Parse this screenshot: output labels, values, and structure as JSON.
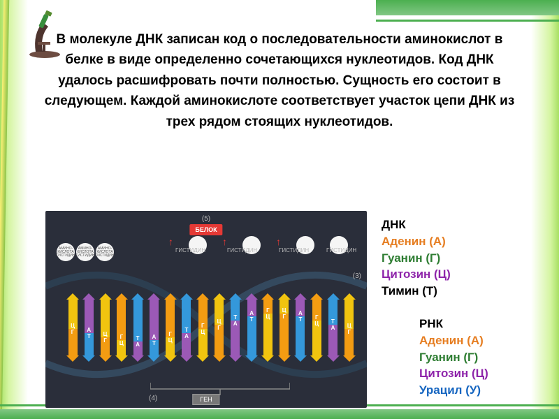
{
  "main_text": "В молекуле ДНК записан код о последовательности аминокислот в белке в виде определенно сочетающихся нуклеотидов. Код ДНК удалось расшифровать почти полностью. Сущность его состоит в следующем. Каждой аминокислоте соответствует участок цепи ДНК из трех рядом стоящих нуклеотидов.",
  "dna_legend": {
    "title": "ДНК",
    "adenine": "Аденин (А)",
    "guanine": "Гуанин (Г)",
    "cytosine": "Цитозин (Ц)",
    "thymine": "Тимин (Т)"
  },
  "rna_legend": {
    "title": "РНК",
    "adenine": "Аденин (А)",
    "guanine": "Гуанин (Г)",
    "cytosine": "Цитозин (Ц)",
    "uracil": "Урацил (У)"
  },
  "colors": {
    "adenine": "#e67e22",
    "guanine": "#2e7d32",
    "cytosine": "#8e24aa",
    "thymine": "#000000",
    "uracil": "#1565c0",
    "dna_title": "#000000",
    "rna_title": "#000000",
    "bar_orange": "#f39c12",
    "bar_green": "#27ae60",
    "bar_yellow": "#f1c40f",
    "bar_purple": "#9b59b6",
    "bar_red": "#e74c3c",
    "bar_blue": "#3498db",
    "strand": "#34495e"
  },
  "diagram": {
    "protein_label": "БЕЛОК",
    "gene_label": "ГЕН",
    "amino_label": "АМИНО-\nКИСЛОТА\nГИСТИДИН",
    "histidine": "ГИСТИДИН",
    "num5": "(5)",
    "num4": "(4)",
    "num3": "(3)",
    "pairs": [
      {
        "top": "#f1c40f",
        "topH": 42,
        "bot": "#f39c12",
        "botH": 38,
        "topL": "Ц",
        "botL": "Г"
      },
      {
        "top": "#9b59b6",
        "topH": 48,
        "bot": "#3498db",
        "botH": 32,
        "topL": "А",
        "botL": "Т"
      },
      {
        "top": "#f1c40f",
        "topH": 54,
        "bot": "#f39c12",
        "botH": 26,
        "topL": "Ц",
        "botL": "Г"
      },
      {
        "top": "#f39c12",
        "topH": 58,
        "bot": "#f1c40f",
        "botH": 22,
        "topL": "Г",
        "botL": "Ц"
      },
      {
        "top": "#3498db",
        "topH": 60,
        "bot": "#9b59b6",
        "botH": 20,
        "topL": "Т",
        "botL": "А"
      },
      {
        "top": "#9b59b6",
        "topH": 58,
        "bot": "#3498db",
        "botH": 22,
        "topL": "А",
        "botL": "Т"
      },
      {
        "top": "#f39c12",
        "topH": 54,
        "bot": "#f1c40f",
        "botH": 26,
        "topL": "Г",
        "botL": "Ц"
      },
      {
        "top": "#3498db",
        "topH": 48,
        "bot": "#9b59b6",
        "botH": 32,
        "topL": "Т",
        "botL": "А"
      },
      {
        "top": "#f39c12",
        "topH": 42,
        "bot": "#f1c40f",
        "botH": 38,
        "topL": "Г",
        "botL": "Ц"
      },
      {
        "top": "#f1c40f",
        "topH": 36,
        "bot": "#f39c12",
        "botH": 44,
        "topL": "Ц",
        "botL": "Г"
      },
      {
        "top": "#3498db",
        "topH": 30,
        "bot": "#9b59b6",
        "botH": 50,
        "topL": "Т",
        "botL": "А"
      },
      {
        "top": "#9b59b6",
        "topH": 24,
        "bot": "#3498db",
        "botH": 56,
        "topL": "А",
        "botL": "Т"
      },
      {
        "top": "#f39c12",
        "topH": 20,
        "bot": "#f1c40f",
        "botH": 60,
        "topL": "Г",
        "botL": "Ц"
      },
      {
        "top": "#f1c40f",
        "topH": 20,
        "bot": "#f39c12",
        "botH": 60,
        "topL": "Ц",
        "botL": "Г"
      },
      {
        "top": "#9b59b6",
        "topH": 24,
        "bot": "#3498db",
        "botH": 56,
        "topL": "А",
        "botL": "Т"
      },
      {
        "top": "#f39c12",
        "topH": 30,
        "bot": "#f1c40f",
        "botH": 50,
        "topL": "Г",
        "botL": "Ц"
      },
      {
        "top": "#3498db",
        "topH": 36,
        "bot": "#9b59b6",
        "botH": 44,
        "topL": "Т",
        "botL": "А"
      },
      {
        "top": "#f1c40f",
        "topH": 42,
        "bot": "#f39c12",
        "botH": 38,
        "topL": "Ц",
        "botL": "Г"
      }
    ]
  }
}
